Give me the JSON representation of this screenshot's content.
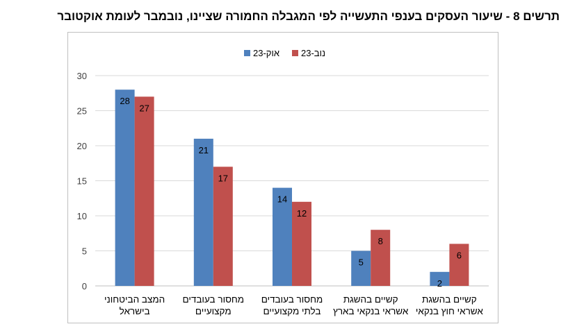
{
  "title": "תרשים 8 - שיעור העסקים בענפי התעשייה לפי המגבלה החמורה שציינו, נובמבר לעומת אוקטובר",
  "chart_data": {
    "type": "bar",
    "categories": [
      [
        "המצב הביטחוני",
        "בישראל"
      ],
      [
        "מחסור בעובדים",
        "מקצועיים"
      ],
      [
        "מחסור בעובדים",
        "בלתי מקצועיים"
      ],
      [
        "קשיים בהשגת",
        "אשראי בנקאי בארץ"
      ],
      [
        "קשיים בהשגת",
        "אשראי חוץ בנקאי"
      ]
    ],
    "series": [
      {
        "name": "אוק-23",
        "color": "#4f81bd",
        "values": [
          28,
          21,
          14,
          5,
          2
        ]
      },
      {
        "name": "נוב-23",
        "color": "#c0504d",
        "values": [
          27,
          17,
          12,
          8,
          6
        ]
      }
    ],
    "ylim": [
      0,
      30
    ],
    "yticks": [
      0,
      5,
      10,
      15,
      20,
      25,
      30
    ],
    "grid": true,
    "legend": "top-center",
    "xlabel": "",
    "ylabel": ""
  }
}
